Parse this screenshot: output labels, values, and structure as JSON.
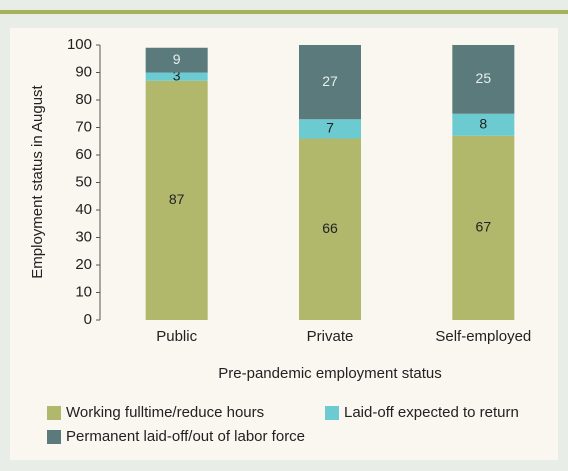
{
  "chart_data": {
    "type": "stacked_bar",
    "x_label": "Pre-pandemic employment status",
    "y_label": "Employment status in August",
    "categories": [
      "Public",
      "Private",
      "Self-employed"
    ],
    "series": [
      {
        "name": "Working fulltime/reduce hours",
        "color": "#b1b86b",
        "values": [
          87,
          66,
          67
        ]
      },
      {
        "name": "Laid-off expected to return",
        "color": "#6ccbd1",
        "values": [
          3,
          7,
          8
        ]
      },
      {
        "name": "Permanent laid-off/out of labor force",
        "color": "#5a7a7b",
        "values": [
          9,
          27,
          25
        ]
      }
    ],
    "ylim": [
      0,
      100
    ],
    "yticks": [
      0,
      10,
      20,
      30,
      40,
      50,
      60,
      70,
      80,
      90,
      100
    ],
    "grid": false
  }
}
